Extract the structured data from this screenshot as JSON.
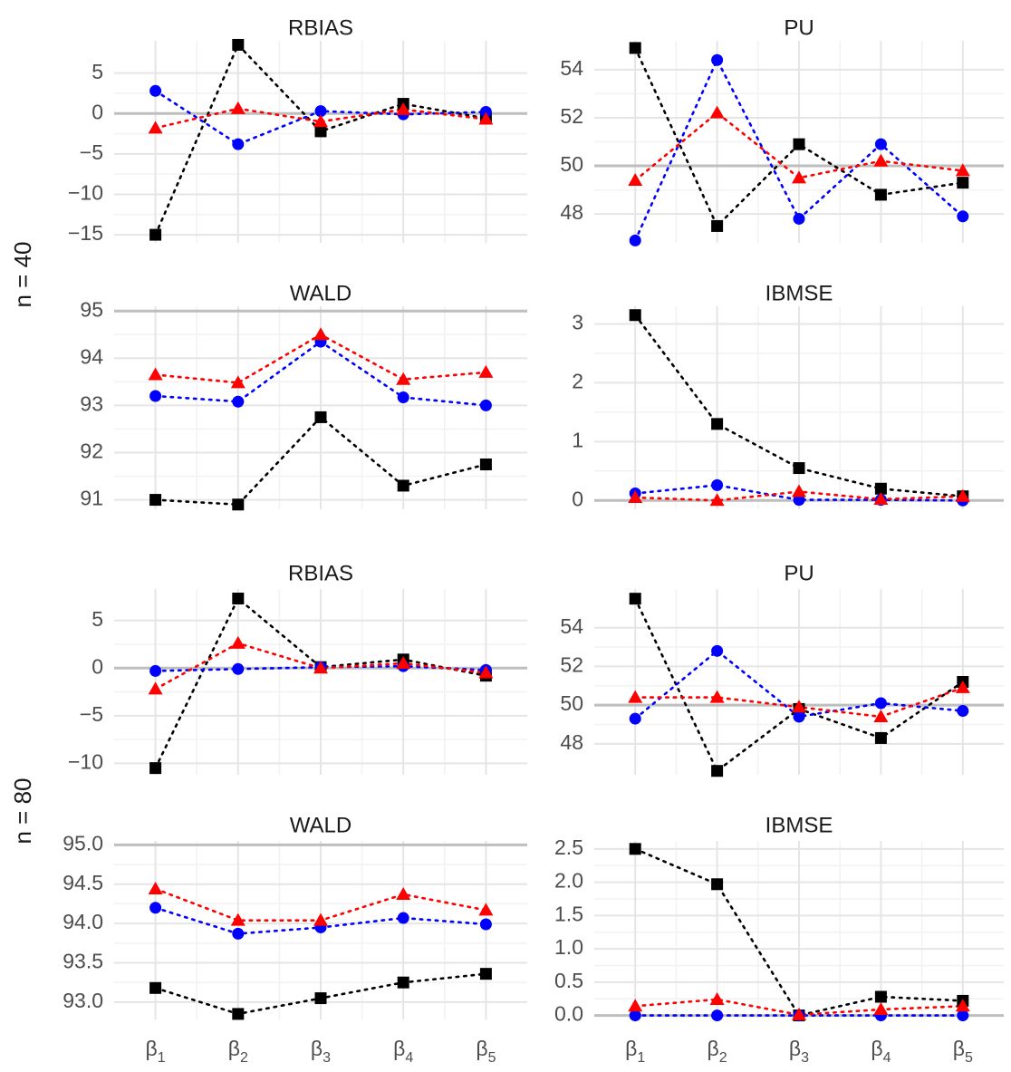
{
  "colors": {
    "black_series": "#000000",
    "blue_series": "#0000ff",
    "red_series": "#ff0000",
    "grid_major": "#e5e5e5",
    "grid_minor": "#f2f2f2",
    "reference_line": "#bebebe"
  },
  "row_labels": [
    "n = 40",
    "n = 80"
  ],
  "x_tick_labels": [
    {
      "base": "β",
      "sub": "1"
    },
    {
      "base": "β",
      "sub": "2"
    },
    {
      "base": "β",
      "sub": "3"
    },
    {
      "base": "β",
      "sub": "4"
    },
    {
      "base": "β",
      "sub": "5"
    }
  ],
  "chart_data": [
    {
      "type": "line",
      "title": "RBIAS",
      "row": "n = 40",
      "categories": [
        "β1",
        "β2",
        "β3",
        "β4",
        "β5"
      ],
      "ylim": [
        -16,
        9
      ],
      "yticks": [
        5,
        0,
        -5,
        -10,
        -15
      ],
      "reference_line": 0,
      "series": [
        {
          "marker": "square",
          "color": "#000000",
          "values": [
            -15,
            8.5,
            -2.2,
            1.2,
            -0.6
          ]
        },
        {
          "marker": "circle",
          "color": "#0000ff",
          "values": [
            2.8,
            -3.8,
            0.3,
            -0.1,
            0.2
          ]
        },
        {
          "marker": "triangle",
          "color": "#ff0000",
          "values": [
            -1.8,
            0.6,
            -1.0,
            0.5,
            -0.7
          ]
        }
      ]
    },
    {
      "type": "line",
      "title": "PU",
      "row": "n = 40",
      "categories": [
        "β1",
        "β2",
        "β3",
        "β4",
        "β5"
      ],
      "ylim": [
        46.8,
        55.2
      ],
      "yticks": [
        54,
        52,
        50,
        48
      ],
      "reference_line": 50,
      "series": [
        {
          "marker": "square",
          "color": "#000000",
          "values": [
            54.9,
            47.5,
            50.9,
            48.8,
            49.3
          ]
        },
        {
          "marker": "circle",
          "color": "#0000ff",
          "values": [
            46.9,
            54.4,
            47.8,
            50.9,
            47.9
          ]
        },
        {
          "marker": "triangle",
          "color": "#ff0000",
          "values": [
            49.4,
            52.2,
            49.5,
            50.2,
            49.8
          ]
        }
      ]
    },
    {
      "type": "line",
      "title": "WALD",
      "row": "n = 40",
      "categories": [
        "β1",
        "β2",
        "β3",
        "β4",
        "β5"
      ],
      "ylim": [
        90.8,
        95.1
      ],
      "yticks": [
        95,
        94,
        93,
        92,
        91
      ],
      "reference_line": 95,
      "series": [
        {
          "marker": "square",
          "color": "#000000",
          "values": [
            91.0,
            90.9,
            92.75,
            91.3,
            91.75
          ]
        },
        {
          "marker": "circle",
          "color": "#0000ff",
          "values": [
            93.2,
            93.08,
            94.35,
            93.17,
            93.0
          ]
        },
        {
          "marker": "triangle",
          "color": "#ff0000",
          "values": [
            93.65,
            93.48,
            94.5,
            93.55,
            93.7
          ]
        }
      ]
    },
    {
      "type": "line",
      "title": "IBMSE",
      "row": "n = 40",
      "categories": [
        "β1",
        "β2",
        "β3",
        "β4",
        "β5"
      ],
      "ylim": [
        -0.15,
        3.3
      ],
      "yticks": [
        3,
        2,
        1,
        0
      ],
      "reference_line": 0,
      "series": [
        {
          "marker": "square",
          "color": "#000000",
          "values": [
            3.15,
            1.3,
            0.55,
            0.2,
            0.07
          ]
        },
        {
          "marker": "circle",
          "color": "#0000ff",
          "values": [
            0.12,
            0.26,
            0.01,
            0.01,
            0.0
          ]
        },
        {
          "marker": "triangle",
          "color": "#ff0000",
          "values": [
            0.05,
            0.0,
            0.15,
            0.02,
            0.07
          ]
        }
      ]
    },
    {
      "type": "line",
      "title": "RBIAS",
      "row": "n = 80",
      "categories": [
        "β1",
        "β2",
        "β3",
        "β4",
        "β5"
      ],
      "ylim": [
        -11.2,
        8.3
      ],
      "yticks": [
        5,
        0,
        -5,
        -10
      ],
      "reference_line": 0,
      "series": [
        {
          "marker": "square",
          "color": "#000000",
          "values": [
            -10.5,
            7.3,
            0.1,
            0.9,
            -0.8
          ]
        },
        {
          "marker": "circle",
          "color": "#0000ff",
          "values": [
            -0.3,
            -0.1,
            0.1,
            0.2,
            -0.2
          ]
        },
        {
          "marker": "triangle",
          "color": "#ff0000",
          "values": [
            -2.2,
            2.6,
            0.0,
            0.5,
            -0.5
          ]
        }
      ]
    },
    {
      "type": "line",
      "title": "PU",
      "row": "n = 80",
      "categories": [
        "β1",
        "β2",
        "β3",
        "β4",
        "β5"
      ],
      "ylim": [
        46.4,
        56.0
      ],
      "yticks": [
        54,
        52,
        50,
        48
      ],
      "reference_line": 50,
      "series": [
        {
          "marker": "square",
          "color": "#000000",
          "values": [
            55.5,
            46.6,
            49.8,
            48.3,
            51.2
          ]
        },
        {
          "marker": "circle",
          "color": "#0000ff",
          "values": [
            49.3,
            52.8,
            49.4,
            50.1,
            49.7
          ]
        },
        {
          "marker": "triangle",
          "color": "#ff0000",
          "values": [
            50.4,
            50.4,
            49.9,
            49.4,
            50.9
          ]
        }
      ]
    },
    {
      "type": "line",
      "title": "WALD",
      "row": "n = 80",
      "categories": [
        "β1",
        "β2",
        "β3",
        "β4",
        "β5"
      ],
      "ylim": [
        92.78,
        95.05
      ],
      "yticks": [
        95.0,
        94.5,
        94.0,
        93.5,
        93.0
      ],
      "ytick_decimals": 1,
      "reference_line": 95,
      "series": [
        {
          "marker": "square",
          "color": "#000000",
          "values": [
            93.18,
            92.85,
            93.05,
            93.25,
            93.36
          ]
        },
        {
          "marker": "circle",
          "color": "#0000ff",
          "values": [
            94.2,
            93.87,
            93.95,
            94.07,
            93.99
          ]
        },
        {
          "marker": "triangle",
          "color": "#ff0000",
          "values": [
            94.44,
            94.04,
            94.04,
            94.37,
            94.17
          ]
        }
      ]
    },
    {
      "type": "line",
      "title": "IBMSE",
      "row": "n = 80",
      "categories": [
        "β1",
        "β2",
        "β3",
        "β4",
        "β5"
      ],
      "ylim": [
        -0.06,
        2.62
      ],
      "yticks": [
        2.5,
        2.0,
        1.5,
        1.0,
        0.5,
        0.0
      ],
      "ytick_decimals": 1,
      "reference_line": 0,
      "series": [
        {
          "marker": "square",
          "color": "#000000",
          "values": [
            2.5,
            1.97,
            0.0,
            0.28,
            0.22
          ]
        },
        {
          "marker": "circle",
          "color": "#0000ff",
          "values": [
            0.0,
            0.0,
            0.0,
            0.0,
            0.0
          ]
        },
        {
          "marker": "triangle",
          "color": "#ff0000",
          "values": [
            0.14,
            0.24,
            0.01,
            0.09,
            0.14
          ]
        }
      ]
    }
  ]
}
